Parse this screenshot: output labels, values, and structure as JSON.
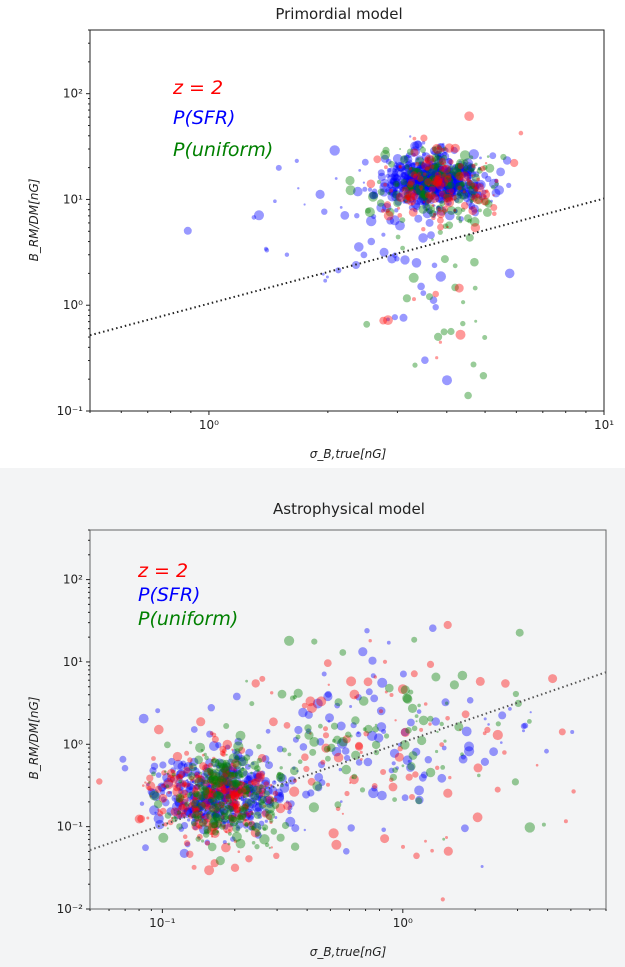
{
  "chart_data": [
    {
      "type": "scatter",
      "title": "Primordial model",
      "xlabel": "σ_B,true[nG]",
      "ylabel": "B_RM/DM[nG]",
      "xscale": "log",
      "yscale": "log",
      "xlim": [
        0.5,
        10
      ],
      "ylim": [
        0.1,
        400
      ],
      "x_ticks": [
        {
          "value": 1,
          "label": "10⁰"
        },
        {
          "value": 10,
          "label": "10¹"
        }
      ],
      "y_ticks": [
        {
          "value": 0.1,
          "label": "10⁻¹"
        },
        {
          "value": 1,
          "label": "10⁰"
        },
        {
          "value": 10,
          "label": "10¹"
        },
        {
          "value": 100,
          "label": "10²"
        }
      ],
      "legend": {
        "placement": "upper-left",
        "entries": [
          {
            "label": "z = 2",
            "color": "#ff0000"
          },
          {
            "label": "P(SFR)",
            "color": "#0000ff"
          },
          {
            "label": "P(uniform)",
            "color": "#008000"
          }
        ]
      },
      "reference_line": {
        "style": "dotted",
        "color": "#222222",
        "points": [
          [
            0.5,
            0.52
          ],
          [
            10,
            10.2
          ]
        ]
      },
      "series": [
        {
          "color": "#0000ff",
          "clusters": [
            {
              "x_center": 3.7,
              "y_center": 15,
              "x_spread_dex": 0.06,
              "y_spread_dex": 0.12,
              "count": 620
            },
            {
              "x_center": 2.2,
              "y_center": 6,
              "x_spread_dex": 0.18,
              "y_spread_dex": 0.35,
              "count": 55
            },
            {
              "x_center": 3.6,
              "y_center": 1.2,
              "x_spread_dex": 0.05,
              "y_spread_dex": 0.3,
              "count": 10
            }
          ]
        },
        {
          "color": "#008000",
          "clusters": [
            {
              "x_center": 3.8,
              "y_center": 14,
              "x_spread_dex": 0.08,
              "y_spread_dex": 0.2,
              "count": 170
            },
            {
              "x_center": 3.7,
              "y_center": 1.0,
              "x_spread_dex": 0.08,
              "y_spread_dex": 0.35,
              "count": 22
            }
          ]
        },
        {
          "color": "#ff0000",
          "clusters": [
            {
              "x_center": 3.9,
              "y_center": 14,
              "x_spread_dex": 0.08,
              "y_spread_dex": 0.2,
              "count": 130
            },
            {
              "x_center": 3.8,
              "y_center": 0.9,
              "x_spread_dex": 0.06,
              "y_spread_dex": 0.3,
              "count": 8
            }
          ]
        }
      ]
    },
    {
      "type": "scatter",
      "title": "Astrophysical model",
      "xlabel": "σ_B,true[nG]",
      "ylabel": "B_RM/DM[nG]",
      "xscale": "log",
      "yscale": "log",
      "xlim": [
        0.05,
        7
      ],
      "ylim": [
        0.01,
        400
      ],
      "x_ticks": [
        {
          "value": 0.1,
          "label": "10⁻¹"
        },
        {
          "value": 1,
          "label": "10⁰"
        }
      ],
      "y_ticks": [
        {
          "value": 0.01,
          "label": "10⁻²"
        },
        {
          "value": 0.1,
          "label": "10⁻¹"
        },
        {
          "value": 1,
          "label": "10⁰"
        },
        {
          "value": 10,
          "label": "10¹"
        },
        {
          "value": 100,
          "label": "10²"
        }
      ],
      "legend": {
        "placement": "upper-left",
        "entries": [
          {
            "label": "z = 2",
            "color": "#ff0000"
          },
          {
            "label": "P(SFR)",
            "color": "#0000ff"
          },
          {
            "label": "P(uniform)",
            "color": "#008000"
          }
        ]
      },
      "reference_line": {
        "style": "dotted",
        "color": "#555555",
        "points": [
          [
            0.05,
            0.052
          ],
          [
            7,
            7.5
          ]
        ]
      },
      "series": [
        {
          "color": "#0000ff",
          "clusters": [
            {
              "x_center": 0.17,
              "y_center": 0.25,
              "x_spread_dex": 0.13,
              "y_spread_dex": 0.25,
              "count": 420
            },
            {
              "x_center": 0.8,
              "y_center": 1.2,
              "x_spread_dex": 0.35,
              "y_spread_dex": 0.55,
              "count": 110
            }
          ]
        },
        {
          "color": "#ff0000",
          "clusters": [
            {
              "x_center": 0.16,
              "y_center": 0.22,
              "x_spread_dex": 0.13,
              "y_spread_dex": 0.3,
              "count": 260
            },
            {
              "x_center": 0.8,
              "y_center": 1.0,
              "x_spread_dex": 0.35,
              "y_spread_dex": 0.6,
              "count": 100
            }
          ]
        },
        {
          "color": "#008000",
          "clusters": [
            {
              "x_center": 0.18,
              "y_center": 0.22,
              "x_spread_dex": 0.14,
              "y_spread_dex": 0.3,
              "count": 220
            },
            {
              "x_center": 0.8,
              "y_center": 1.0,
              "x_spread_dex": 0.35,
              "y_spread_dex": 0.6,
              "count": 100
            }
          ]
        }
      ]
    }
  ]
}
